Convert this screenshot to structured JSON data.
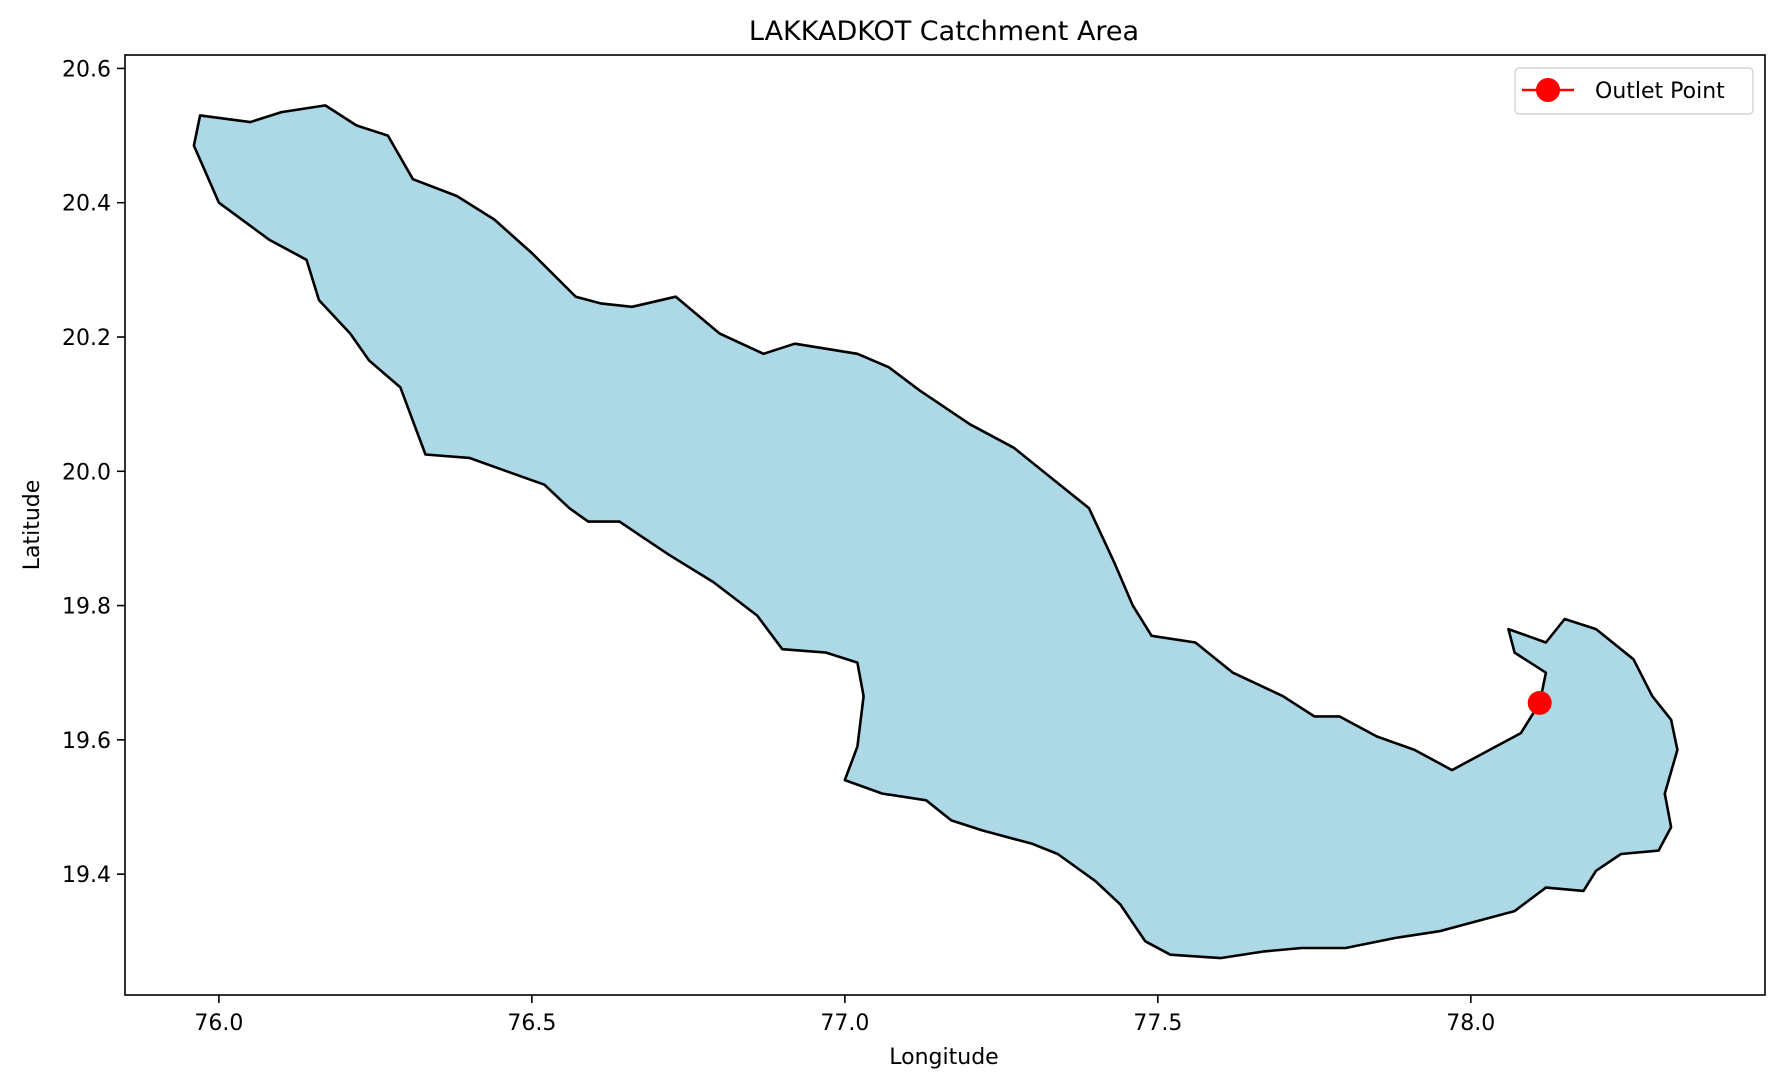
{
  "title": "LAKKADKOT Catchment Area",
  "x_axis": {
    "label": "Longitude",
    "range": [
      75.85,
      78.47
    ],
    "ticks": [
      {
        "value": 76.0,
        "label": "76.0"
      },
      {
        "value": 76.5,
        "label": "76.5"
      },
      {
        "value": 77.0,
        "label": "77.0"
      },
      {
        "value": 77.5,
        "label": "77.5"
      },
      {
        "value": 78.0,
        "label": "78.0"
      }
    ]
  },
  "y_axis": {
    "label": "Latitude",
    "range": [
      19.22,
      20.62
    ],
    "ticks": [
      {
        "value": 19.4,
        "label": "19.4"
      },
      {
        "value": 19.6,
        "label": "19.6"
      },
      {
        "value": 19.8,
        "label": "19.8"
      },
      {
        "value": 20.0,
        "label": "20.0"
      },
      {
        "value": 20.2,
        "label": "20.2"
      },
      {
        "value": 20.4,
        "label": "20.4"
      },
      {
        "value": 20.6,
        "label": "20.6"
      }
    ]
  },
  "legend": {
    "placement": "top-right",
    "items": [
      {
        "label": "Outlet Point",
        "color": "#ff0000",
        "marker": "circle"
      }
    ]
  },
  "colors": {
    "catchment_fill": "#add8e6",
    "catchment_edge": "#000000",
    "outlet": "#ff0000"
  },
  "catchment": {
    "boundary": [
      [
        75.97,
        20.53
      ],
      [
        76.05,
        20.52
      ],
      [
        76.1,
        20.535
      ],
      [
        76.17,
        20.545
      ],
      [
        76.22,
        20.515
      ],
      [
        76.27,
        20.5
      ],
      [
        76.31,
        20.435
      ],
      [
        76.38,
        20.41
      ],
      [
        76.44,
        20.375
      ],
      [
        76.5,
        20.325
      ],
      [
        76.57,
        20.26
      ],
      [
        76.61,
        20.25
      ],
      [
        76.66,
        20.245
      ],
      [
        76.73,
        20.26
      ],
      [
        76.8,
        20.205
      ],
      [
        76.87,
        20.175
      ],
      [
        76.92,
        20.19
      ],
      [
        77.02,
        20.175
      ],
      [
        77.07,
        20.155
      ],
      [
        77.12,
        20.12
      ],
      [
        77.2,
        20.07
      ],
      [
        77.27,
        20.035
      ],
      [
        77.33,
        19.99
      ],
      [
        77.39,
        19.945
      ],
      [
        77.43,
        19.865
      ],
      [
        77.46,
        19.8
      ],
      [
        77.49,
        19.755
      ],
      [
        77.56,
        19.745
      ],
      [
        77.62,
        19.7
      ],
      [
        77.7,
        19.665
      ],
      [
        77.75,
        19.635
      ],
      [
        77.79,
        19.635
      ],
      [
        77.85,
        19.605
      ],
      [
        77.91,
        19.585
      ],
      [
        77.97,
        19.555
      ],
      [
        78.03,
        19.585
      ],
      [
        78.08,
        19.61
      ],
      [
        78.11,
        19.655
      ],
      [
        78.12,
        19.7
      ],
      [
        78.07,
        19.73
      ],
      [
        78.06,
        19.765
      ],
      [
        78.12,
        19.745
      ],
      [
        78.15,
        19.78
      ],
      [
        78.2,
        19.765
      ],
      [
        78.26,
        19.72
      ],
      [
        78.29,
        19.665
      ],
      [
        78.32,
        19.63
      ],
      [
        78.33,
        19.585
      ],
      [
        78.31,
        19.52
      ],
      [
        78.32,
        19.47
      ],
      [
        78.3,
        19.435
      ],
      [
        78.24,
        19.43
      ],
      [
        78.2,
        19.405
      ],
      [
        78.18,
        19.375
      ],
      [
        78.12,
        19.38
      ],
      [
        78.07,
        19.345
      ],
      [
        78.01,
        19.33
      ],
      [
        77.95,
        19.315
      ],
      [
        77.88,
        19.305
      ],
      [
        77.8,
        19.29
      ],
      [
        77.73,
        19.29
      ],
      [
        77.67,
        19.285
      ],
      [
        77.6,
        19.275
      ],
      [
        77.52,
        19.28
      ],
      [
        77.48,
        19.3
      ],
      [
        77.44,
        19.355
      ],
      [
        77.4,
        19.39
      ],
      [
        77.34,
        19.43
      ],
      [
        77.3,
        19.445
      ],
      [
        77.22,
        19.465
      ],
      [
        77.17,
        19.48
      ],
      [
        77.13,
        19.51
      ],
      [
        77.06,
        19.52
      ],
      [
        77.0,
        19.54
      ],
      [
        77.02,
        19.59
      ],
      [
        77.03,
        19.665
      ],
      [
        77.02,
        19.715
      ],
      [
        76.97,
        19.73
      ],
      [
        76.9,
        19.735
      ],
      [
        76.86,
        19.785
      ],
      [
        76.79,
        19.835
      ],
      [
        76.72,
        19.875
      ],
      [
        76.68,
        19.9
      ],
      [
        76.64,
        19.925
      ],
      [
        76.59,
        19.925
      ],
      [
        76.56,
        19.945
      ],
      [
        76.52,
        19.98
      ],
      [
        76.46,
        20.0
      ],
      [
        76.4,
        20.02
      ],
      [
        76.33,
        20.025
      ],
      [
        76.31,
        20.075
      ],
      [
        76.29,
        20.125
      ],
      [
        76.24,
        20.165
      ],
      [
        76.21,
        20.205
      ],
      [
        76.16,
        20.255
      ],
      [
        76.14,
        20.315
      ],
      [
        76.08,
        20.345
      ],
      [
        76.0,
        20.4
      ],
      [
        75.96,
        20.485
      ],
      [
        75.97,
        20.53
      ]
    ]
  },
  "outlet_point": {
    "name": "Outlet Point",
    "lon": 78.11,
    "lat": 19.655
  }
}
